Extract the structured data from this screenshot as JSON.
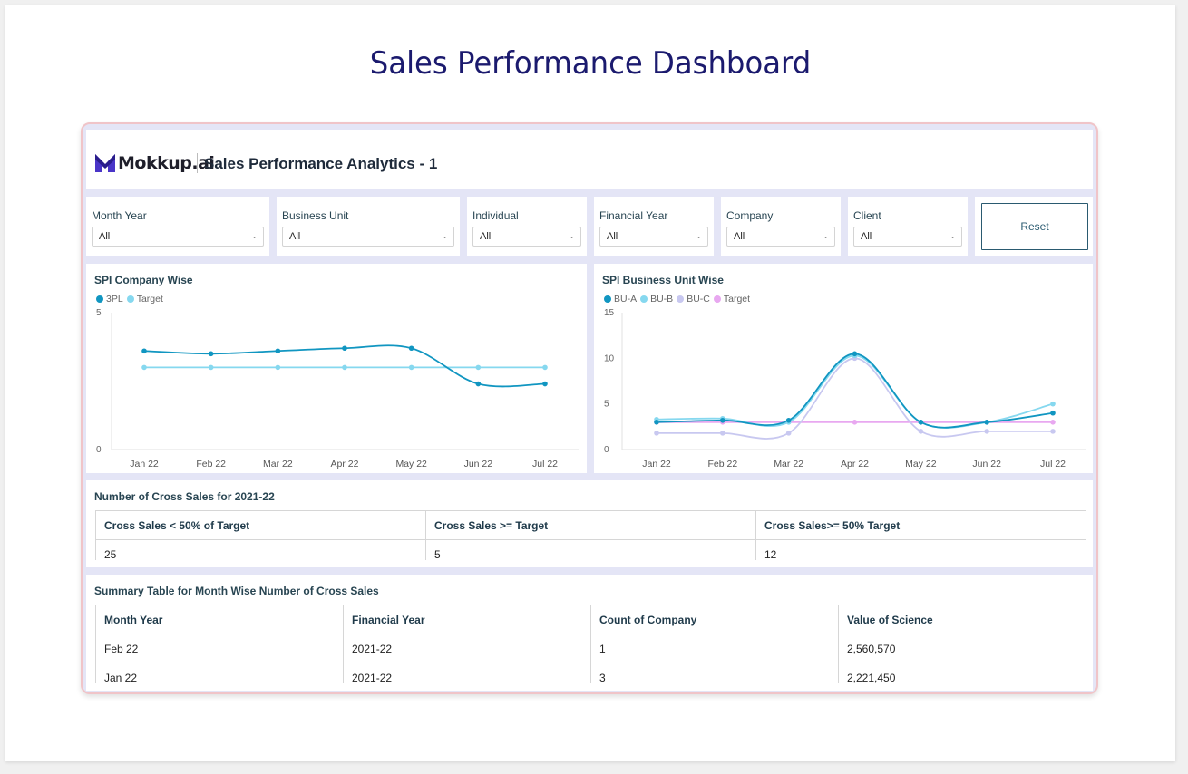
{
  "page_title": "Sales Performance Dashboard",
  "header": {
    "logo_text": "Mokkup.ai",
    "title": "Sales Performance Analytics - 1"
  },
  "filters": [
    {
      "label": "Month Year",
      "value": "All"
    },
    {
      "label": "Business Unit",
      "value": "All"
    },
    {
      "label": "Individual",
      "value": "All"
    },
    {
      "label": "Financial Year",
      "value": "All"
    },
    {
      "label": "Company",
      "value": "All"
    },
    {
      "label": "Client",
      "value": "All"
    }
  ],
  "reset_label": "Reset",
  "charts": {
    "company": {
      "title": "SPI Company Wise",
      "legend": [
        "3PL",
        "Target"
      ]
    },
    "bu": {
      "title": "SPI Business Unit Wise",
      "legend": [
        "BU-A",
        "BU-B",
        "BU-C",
        "Target"
      ]
    }
  },
  "chart_data": [
    {
      "type": "line",
      "title": "SPI Company Wise",
      "categories": [
        "Jan 22",
        "Feb 22",
        "Mar 22",
        "Apr 22",
        "May 22",
        "Jun 22",
        "Jul 22"
      ],
      "ylim": [
        0,
        5
      ],
      "yticks": [
        0,
        5
      ],
      "grid": false,
      "legend_position": "top-left",
      "series": [
        {
          "name": "3PL",
          "color": "#1196c1",
          "values": [
            3.6,
            3.5,
            3.6,
            3.7,
            3.7,
            2.4,
            2.4
          ]
        },
        {
          "name": "Target",
          "color": "#86d8ef",
          "values": [
            3.0,
            3.0,
            3.0,
            3.0,
            3.0,
            3.0,
            3.0
          ]
        }
      ]
    },
    {
      "type": "line",
      "title": "SPI Business Unit Wise",
      "categories": [
        "Jan 22",
        "Feb 22",
        "Mar 22",
        "Apr 22",
        "May 22",
        "Jun 22",
        "Jul 22"
      ],
      "ylim": [
        0,
        15
      ],
      "yticks": [
        0,
        5,
        10,
        15
      ],
      "grid": false,
      "legend_position": "top-left",
      "series": [
        {
          "name": "BU-A",
          "color": "#1196c1",
          "values": [
            3.0,
            3.2,
            3.2,
            10.5,
            3.0,
            3.0,
            4.0
          ]
        },
        {
          "name": "BU-B",
          "color": "#86d8ef",
          "values": [
            3.3,
            3.4,
            3.0,
            10.3,
            3.0,
            3.0,
            5.0
          ]
        },
        {
          "name": "BU-C",
          "color": "#c8c8f0",
          "values": [
            1.8,
            1.8,
            1.8,
            10.0,
            2.0,
            2.0,
            2.0
          ]
        },
        {
          "name": "Target",
          "color": "#e8a8f0",
          "values": [
            3.0,
            3.0,
            3.0,
            3.0,
            3.0,
            3.0,
            3.0
          ]
        }
      ]
    }
  ],
  "cross_sales": {
    "title": "Number of Cross Sales for 2021-22",
    "headers": [
      "Cross Sales < 50% of Target",
      "Cross Sales >= Target",
      "Cross Sales>= 50% Target"
    ],
    "values": [
      "25",
      "5",
      "12"
    ]
  },
  "summary": {
    "title": "Summary Table for Month Wise Number of Cross Sales",
    "headers": [
      "Month Year",
      "Financial Year",
      "Count of Company",
      "Value of Science"
    ],
    "rows": [
      [
        "Feb 22",
        "2021-22",
        "1",
        "2,560,570"
      ],
      [
        "Jan 22",
        "2021-22",
        "3",
        "2,221,450"
      ]
    ]
  }
}
